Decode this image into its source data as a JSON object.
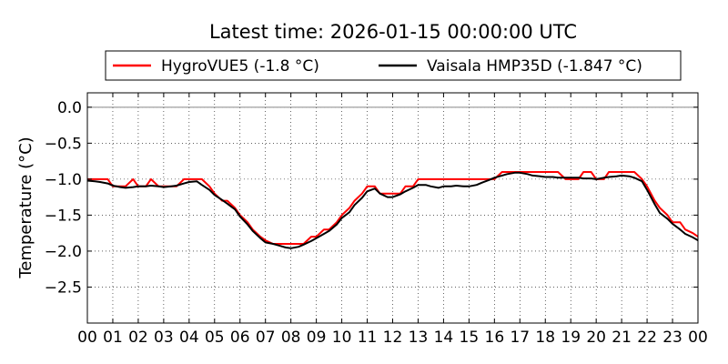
{
  "chart_data": {
    "type": "line",
    "title": "Latest time: 2026-01-15 00:00:00 UTC",
    "xlabel": "",
    "ylabel": "Temperature (°C)",
    "xlim": [
      0,
      24
    ],
    "ylim": [
      -3.0,
      0.2
    ],
    "xticks": [
      "00",
      "01",
      "02",
      "03",
      "04",
      "05",
      "06",
      "07",
      "08",
      "09",
      "10",
      "11",
      "12",
      "13",
      "14",
      "15",
      "16",
      "17",
      "18",
      "19",
      "20",
      "21",
      "22",
      "23",
      "00"
    ],
    "yticks": [
      0.0,
      -0.5,
      -1.0,
      -1.5,
      -2.0,
      -2.5
    ],
    "ytick_labels": [
      "0.0",
      "−0.5",
      "−1.0",
      "−1.5",
      "−2.0",
      "−2.5"
    ],
    "grid": true,
    "legend_placement": "top-center",
    "series": [
      {
        "name": "HygroVUE5 (-1.8 °C)",
        "color": "#ff0000",
        "hours": [
          0.0,
          0.3,
          0.5,
          0.8,
          1.0,
          1.3,
          1.5,
          1.8,
          2.0,
          2.3,
          2.5,
          2.8,
          3.0,
          3.3,
          3.5,
          3.8,
          4.0,
          4.3,
          4.5,
          4.8,
          5.0,
          5.3,
          5.5,
          5.8,
          6.0,
          6.3,
          6.5,
          6.8,
          7.0,
          7.3,
          7.5,
          7.8,
          8.0,
          8.3,
          8.5,
          8.8,
          9.0,
          9.3,
          9.5,
          9.8,
          10.0,
          10.3,
          10.5,
          10.8,
          11.0,
          11.3,
          11.5,
          11.8,
          12.0,
          12.3,
          12.5,
          12.8,
          13.0,
          13.3,
          13.5,
          13.8,
          14.0,
          14.3,
          14.5,
          14.8,
          15.0,
          15.3,
          15.5,
          15.8,
          16.0,
          16.3,
          16.5,
          16.8,
          17.0,
          17.3,
          17.5,
          17.8,
          18.0,
          18.3,
          18.5,
          18.8,
          19.0,
          19.3,
          19.5,
          19.8,
          20.0,
          20.3,
          20.5,
          20.8,
          21.0,
          21.3,
          21.5,
          21.8,
          22.0,
          22.3,
          22.5,
          22.8,
          23.0,
          23.3,
          23.5,
          23.8,
          24.0
        ],
        "values": [
          -1.0,
          -1.0,
          -1.0,
          -1.0,
          -1.1,
          -1.1,
          -1.1,
          -1.0,
          -1.1,
          -1.1,
          -1.0,
          -1.1,
          -1.1,
          -1.1,
          -1.1,
          -1.0,
          -1.0,
          -1.0,
          -1.0,
          -1.1,
          -1.2,
          -1.3,
          -1.3,
          -1.4,
          -1.5,
          -1.6,
          -1.7,
          -1.8,
          -1.85,
          -1.9,
          -1.9,
          -1.9,
          -1.9,
          -1.9,
          -1.9,
          -1.8,
          -1.8,
          -1.7,
          -1.7,
          -1.6,
          -1.5,
          -1.4,
          -1.3,
          -1.2,
          -1.1,
          -1.1,
          -1.2,
          -1.2,
          -1.2,
          -1.2,
          -1.1,
          -1.1,
          -1.0,
          -1.0,
          -1.0,
          -1.0,
          -1.0,
          -1.0,
          -1.0,
          -1.0,
          -1.0,
          -1.0,
          -1.0,
          -1.0,
          -1.0,
          -0.9,
          -0.9,
          -0.9,
          -0.9,
          -0.9,
          -0.9,
          -0.9,
          -0.9,
          -0.9,
          -0.9,
          -1.0,
          -1.0,
          -1.0,
          -0.9,
          -0.9,
          -1.0,
          -1.0,
          -0.9,
          -0.9,
          -0.9,
          -0.9,
          -0.9,
          -1.0,
          -1.1,
          -1.3,
          -1.4,
          -1.5,
          -1.6,
          -1.6,
          -1.7,
          -1.75,
          -1.8
        ]
      },
      {
        "name": "Vaisala HMP35D (-1.847 °C)",
        "color": "#000000",
        "hours": [
          0.0,
          0.3,
          0.5,
          0.8,
          1.0,
          1.3,
          1.5,
          1.8,
          2.0,
          2.3,
          2.5,
          2.8,
          3.0,
          3.3,
          3.5,
          3.8,
          4.0,
          4.3,
          4.5,
          4.8,
          5.0,
          5.3,
          5.5,
          5.8,
          6.0,
          6.3,
          6.5,
          6.8,
          7.0,
          7.3,
          7.5,
          7.8,
          8.0,
          8.3,
          8.5,
          8.8,
          9.0,
          9.3,
          9.5,
          9.8,
          10.0,
          10.3,
          10.5,
          10.8,
          11.0,
          11.3,
          11.5,
          11.8,
          12.0,
          12.3,
          12.5,
          12.8,
          13.0,
          13.3,
          13.5,
          13.8,
          14.0,
          14.3,
          14.5,
          14.8,
          15.0,
          15.3,
          15.5,
          15.8,
          16.0,
          16.3,
          16.5,
          16.8,
          17.0,
          17.3,
          17.5,
          17.8,
          18.0,
          18.3,
          18.5,
          18.8,
          19.0,
          19.3,
          19.5,
          19.8,
          20.0,
          20.3,
          20.5,
          20.8,
          21.0,
          21.3,
          21.5,
          21.8,
          22.0,
          22.3,
          22.5,
          22.8,
          23.0,
          23.3,
          23.5,
          23.8,
          24.0
        ],
        "values": [
          -1.02,
          -1.03,
          -1.04,
          -1.06,
          -1.09,
          -1.11,
          -1.12,
          -1.11,
          -1.1,
          -1.1,
          -1.09,
          -1.1,
          -1.11,
          -1.1,
          -1.09,
          -1.06,
          -1.04,
          -1.03,
          -1.08,
          -1.15,
          -1.22,
          -1.29,
          -1.34,
          -1.42,
          -1.52,
          -1.63,
          -1.72,
          -1.82,
          -1.88,
          -1.9,
          -1.92,
          -1.95,
          -1.96,
          -1.94,
          -1.91,
          -1.86,
          -1.82,
          -1.76,
          -1.72,
          -1.63,
          -1.54,
          -1.46,
          -1.36,
          -1.26,
          -1.17,
          -1.13,
          -1.2,
          -1.25,
          -1.25,
          -1.21,
          -1.17,
          -1.12,
          -1.08,
          -1.08,
          -1.1,
          -1.12,
          -1.1,
          -1.1,
          -1.09,
          -1.1,
          -1.1,
          -1.08,
          -1.05,
          -1.01,
          -0.98,
          -0.95,
          -0.93,
          -0.91,
          -0.91,
          -0.93,
          -0.95,
          -0.96,
          -0.97,
          -0.97,
          -0.98,
          -0.98,
          -0.98,
          -0.98,
          -0.99,
          -0.99,
          -1.0,
          -0.98,
          -0.97,
          -0.96,
          -0.95,
          -0.96,
          -0.98,
          -1.03,
          -1.15,
          -1.35,
          -1.47,
          -1.55,
          -1.62,
          -1.7,
          -1.76,
          -1.81,
          -1.85
        ]
      }
    ]
  }
}
